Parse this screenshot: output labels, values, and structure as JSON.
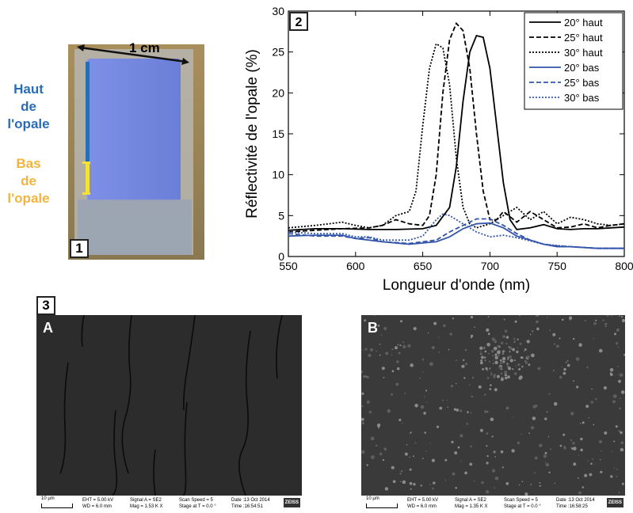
{
  "panel1": {
    "number": "1",
    "scale_label": "1 cm",
    "top_label": [
      "Haut",
      "de",
      "l'opale"
    ],
    "bottom_label": [
      "Bas",
      "de",
      "l'opale"
    ],
    "colors": {
      "top": "#2a6db5",
      "bottom": "#f2b43c",
      "opal": "#6f86e6"
    }
  },
  "panel2": {
    "number": "2"
  },
  "chart_data": {
    "type": "line",
    "xlabel": "Longueur d'onde (nm)",
    "ylabel": "Réflectivité de l'opale (%)",
    "xlim": [
      550,
      800
    ],
    "ylim": [
      0,
      30
    ],
    "xticks": [
      550,
      600,
      650,
      700,
      750,
      800
    ],
    "yticks": [
      0,
      5,
      10,
      15,
      20,
      25,
      30
    ],
    "legend_position": "top-right",
    "series": [
      {
        "name": "20° haut",
        "color": "#000000",
        "dash": "solid",
        "x": [
          550,
          570,
          590,
          610,
          630,
          650,
          660,
          670,
          675,
          680,
          685,
          690,
          695,
          700,
          705,
          710,
          715,
          720,
          730,
          740,
          750,
          760,
          770,
          780,
          790,
          800
        ],
        "y": [
          3.2,
          3.4,
          3.4,
          3.3,
          3.3,
          3.4,
          3.8,
          6,
          11,
          19,
          25,
          27,
          26.8,
          23,
          16,
          9,
          4.5,
          3.3,
          3.5,
          3.9,
          3.4,
          3.3,
          3.4,
          3.4,
          3.5,
          3.6
        ]
      },
      {
        "name": "25° haut",
        "color": "#000000",
        "dash": "6,3",
        "x": [
          550,
          570,
          590,
          610,
          620,
          630,
          640,
          650,
          655,
          660,
          665,
          670,
          675,
          680,
          685,
          690,
          695,
          700,
          705,
          710,
          720,
          730,
          740,
          750,
          760,
          770,
          780,
          790,
          800
        ],
        "y": [
          3,
          3.2,
          3.4,
          3.5,
          3.8,
          4.5,
          4,
          3.8,
          5,
          10,
          20,
          26.5,
          28.5,
          27.6,
          23,
          15,
          8,
          4.5,
          4.5,
          5.5,
          4.2,
          5.5,
          4.5,
          3.5,
          3.6,
          4,
          3.5,
          3.8,
          4
        ]
      },
      {
        "name": "30° haut",
        "color": "#000000",
        "dash": "2,2",
        "x": [
          550,
          570,
          580,
          590,
          600,
          610,
          620,
          630,
          640,
          645,
          650,
          655,
          660,
          665,
          670,
          675,
          680,
          685,
          690,
          700,
          710,
          720,
          730,
          740,
          750,
          760,
          770,
          780,
          790,
          800
        ],
        "y": [
          3.5,
          3.8,
          4,
          4.2,
          3.8,
          3.5,
          3.8,
          5,
          5.5,
          8,
          16,
          23,
          26,
          25.5,
          21,
          12,
          6,
          4,
          3.5,
          4,
          5,
          6,
          4.5,
          5.5,
          4,
          4.8,
          4.5,
          4,
          3.8,
          4
        ]
      },
      {
        "name": "20° bas",
        "color": "#3355aa",
        "dash": "solid",
        "x": [
          550,
          570,
          590,
          600,
          610,
          620,
          640,
          660,
          670,
          680,
          690,
          700,
          710,
          720,
          730,
          740,
          750,
          760,
          780,
          800
        ],
        "y": [
          2.5,
          2.6,
          2.6,
          2.2,
          2,
          1.8,
          1.5,
          1.8,
          2.4,
          3.4,
          4,
          4.1,
          3.5,
          2.5,
          2,
          1.5,
          1.2,
          1.2,
          1,
          1
        ]
      },
      {
        "name": "25° bas",
        "color": "#3355aa",
        "dash": "6,3",
        "x": [
          550,
          570,
          590,
          600,
          610,
          620,
          640,
          660,
          670,
          680,
          690,
          700,
          710,
          720,
          730,
          740,
          750,
          760,
          780,
          800
        ],
        "y": [
          2.8,
          2.5,
          2.5,
          2.2,
          2.3,
          1.8,
          1.6,
          2,
          3,
          3.8,
          4.6,
          4.6,
          3.8,
          2.8,
          2,
          1.5,
          1.3,
          1.2,
          1,
          1
        ]
      },
      {
        "name": "30° bas",
        "color": "#3355aa",
        "dash": "2,2",
        "x": [
          550,
          570,
          590,
          600,
          610,
          620,
          640,
          650,
          660,
          665,
          670,
          680,
          690,
          700,
          710,
          720,
          740,
          760,
          780,
          800
        ],
        "y": [
          3,
          2.8,
          2.8,
          2.4,
          2.4,
          2,
          2,
          2.5,
          4.5,
          5.2,
          5,
          4,
          3,
          2.4,
          2.6,
          2.3,
          1.5,
          1.2,
          1,
          1
        ]
      }
    ]
  },
  "panel3": {
    "number": "3",
    "images": [
      {
        "letter": "A",
        "scale": "10 µm",
        "eht": "EHT = 5.00 kV",
        "wd": "WD = 6.0 mm",
        "signal": "Signal A = SE2",
        "mag": "Mag =   1.53 K X",
        "speed": "Scan Speed = 5",
        "stage": "Stage at T =   0.0 °",
        "date": "Date :13 Oct 2014",
        "time": "Time :16:54:51",
        "brand": "ZEISS"
      },
      {
        "letter": "B",
        "scale": "10 µm",
        "eht": "EHT = 5.00 kV",
        "wd": "WD = 6.0 mm",
        "signal": "Signal A = SE2",
        "mag": "Mag =   1.35 K X",
        "speed": "Scan Speed = 5",
        "stage": "Stage at T =   0.0 °",
        "date": "Date :13 Oct 2014",
        "time": "Time :16:58:25",
        "brand": "ZEISS"
      }
    ]
  }
}
